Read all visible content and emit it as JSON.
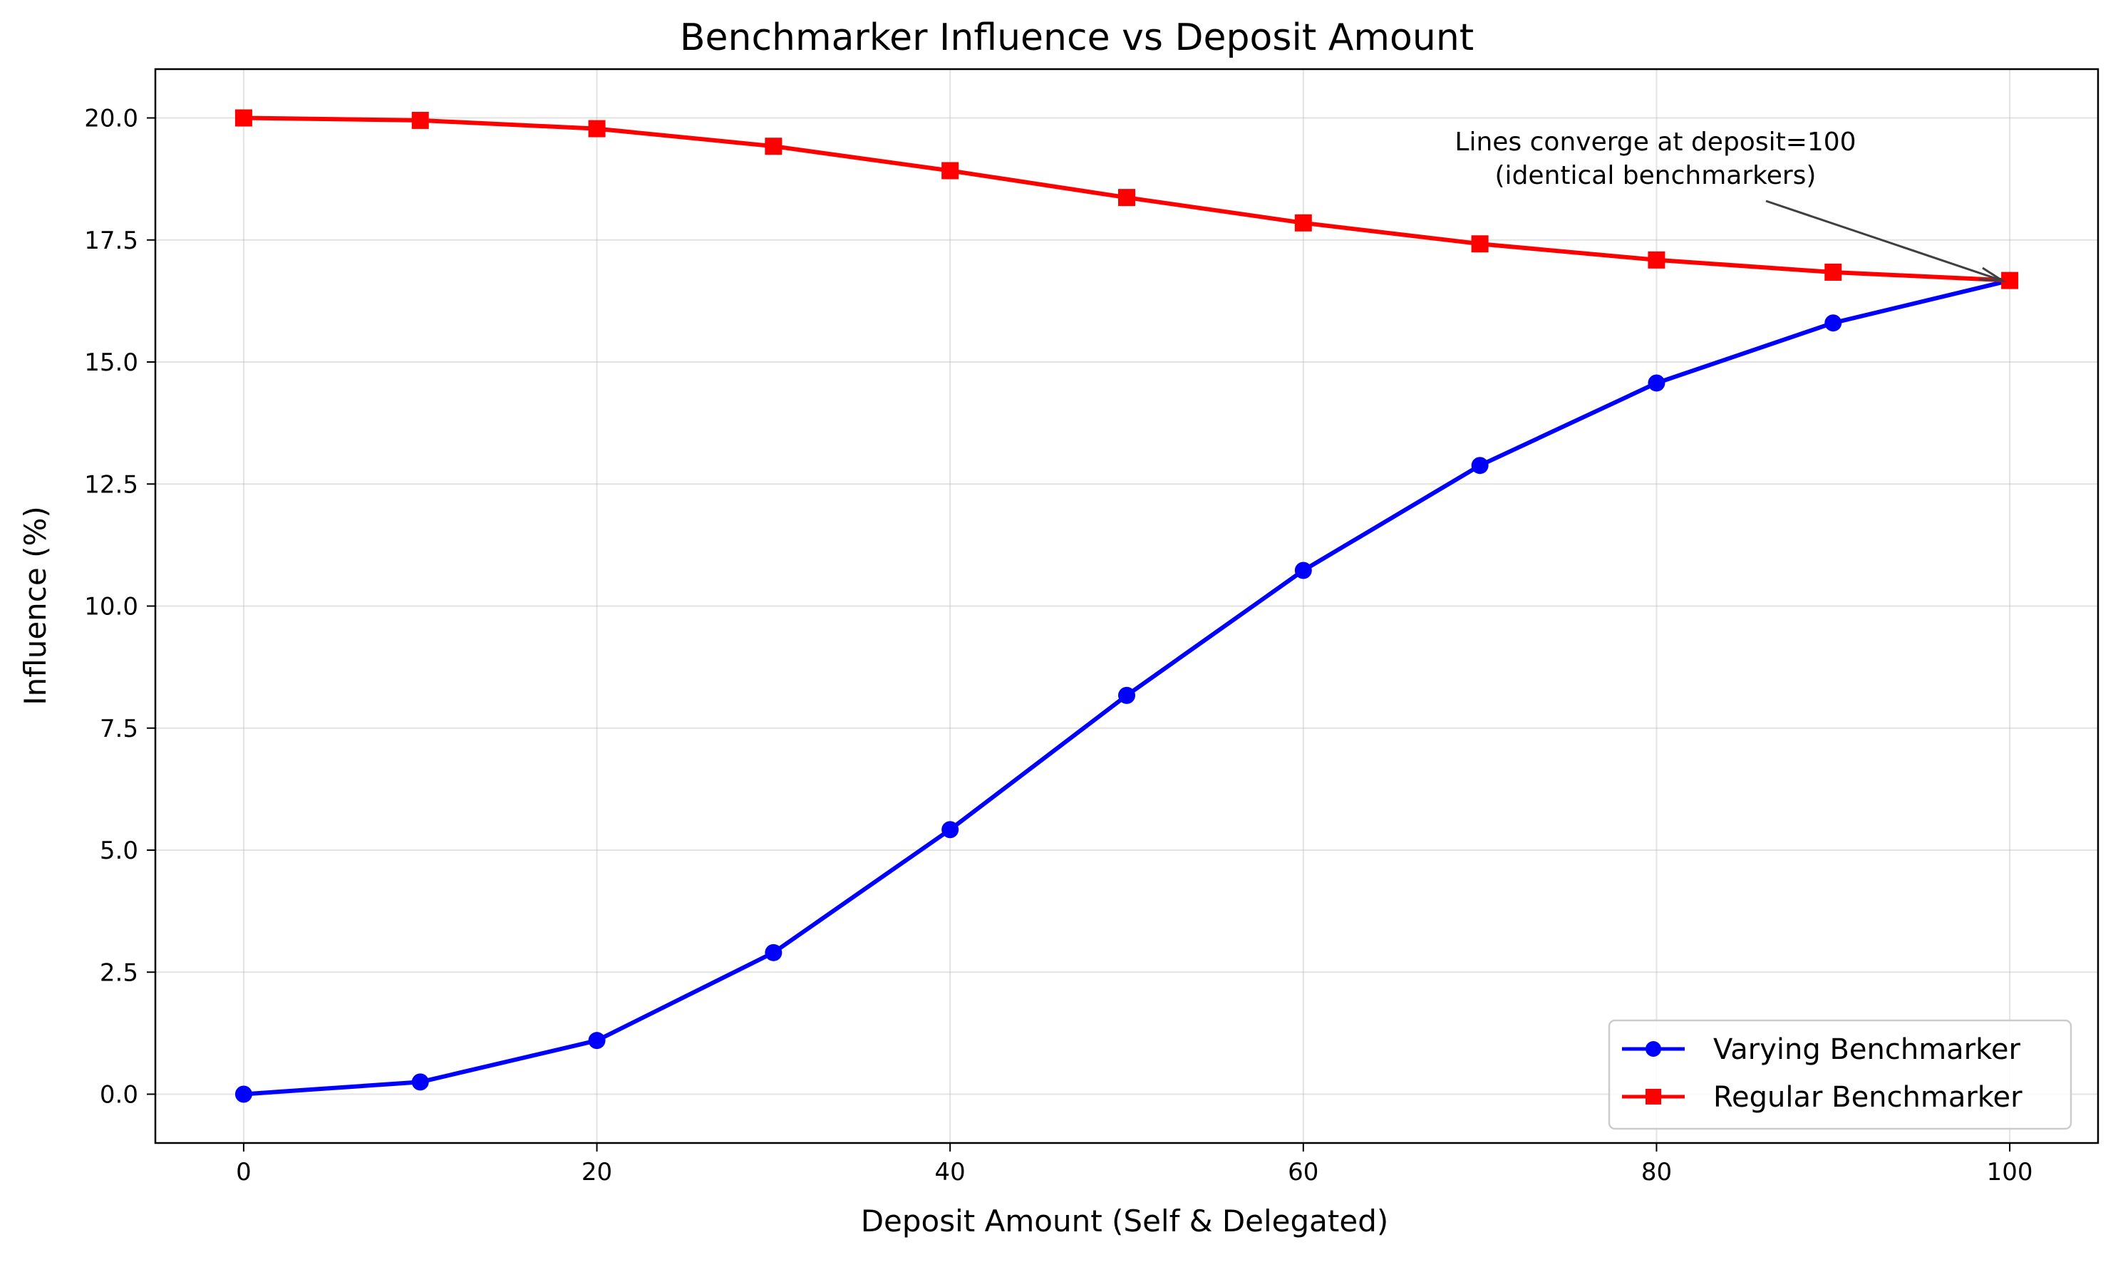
{
  "chart_data": {
    "type": "line",
    "title": "Benchmarker Influence vs Deposit Amount",
    "xlabel": "Deposit Amount (Self & Delegated)",
    "ylabel": "Influence (%)",
    "x": [
      0,
      10,
      20,
      30,
      40,
      50,
      60,
      70,
      80,
      90,
      100
    ],
    "xlim": [
      -5,
      105
    ],
    "ylim": [
      -1,
      21
    ],
    "xticks": [
      0,
      20,
      40,
      60,
      80,
      100
    ],
    "xtick_labels": [
      "0",
      "20",
      "40",
      "60",
      "80",
      "100"
    ],
    "yticks": [
      0,
      2.5,
      5,
      7.5,
      10,
      12.5,
      15,
      17.5,
      20
    ],
    "ytick_labels": [
      "0.0",
      "2.5",
      "5.0",
      "7.5",
      "10.0",
      "12.5",
      "15.0",
      "17.5",
      "20.0"
    ],
    "grid": true,
    "legend_position": "bottom-right",
    "series": [
      {
        "name": "Varying Benchmarker",
        "color": "#0000ff",
        "marker": "circle",
        "values": [
          0.0,
          0.25,
          1.1,
          2.9,
          5.42,
          8.17,
          10.73,
          12.88,
          14.57,
          15.8,
          16.67
        ]
      },
      {
        "name": "Regular Benchmarker",
        "color": "#ff0000",
        "marker": "square",
        "values": [
          20.0,
          19.95,
          19.78,
          19.42,
          18.92,
          18.37,
          17.85,
          17.42,
          17.09,
          16.84,
          16.67
        ]
      }
    ],
    "annotation": {
      "lines": [
        "Lines converge at deposit=100",
        "(identical benchmarkers)"
      ],
      "point": [
        100,
        16.67
      ]
    }
  }
}
